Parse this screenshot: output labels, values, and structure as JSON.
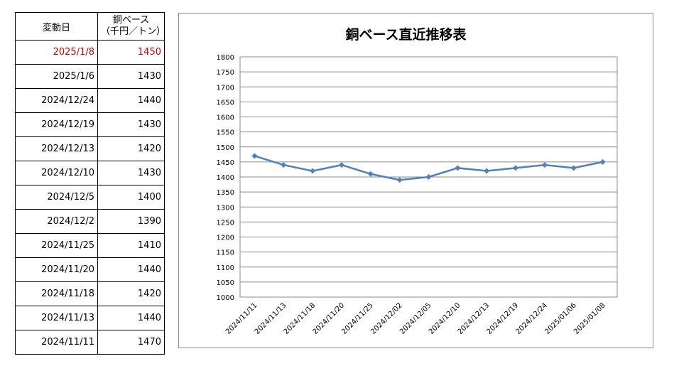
{
  "table": {
    "header": {
      "date": "変動日",
      "price_line1": "銅ベース",
      "price_line2": "（千円／トン）"
    },
    "rows": [
      {
        "date": "2025/1/8",
        "value": "1450",
        "highlight": true
      },
      {
        "date": "2025/1/6",
        "value": "1430"
      },
      {
        "date": "2024/12/24",
        "value": "1440"
      },
      {
        "date": "2024/12/19",
        "value": "1430"
      },
      {
        "date": "2024/12/13",
        "value": "1420"
      },
      {
        "date": "2024/12/10",
        "value": "1430"
      },
      {
        "date": "2024/12/5",
        "value": "1400"
      },
      {
        "date": "2024/12/2",
        "value": "1390"
      },
      {
        "date": "2024/11/25",
        "value": "1410"
      },
      {
        "date": "2024/11/20",
        "value": "1440"
      },
      {
        "date": "2024/11/18",
        "value": "1420"
      },
      {
        "date": "2024/11/13",
        "value": "1440"
      },
      {
        "date": "2024/11/11",
        "value": "1470"
      }
    ]
  },
  "colors": {
    "series": "#4f81bd",
    "highlight": "#cc0000",
    "grid": "#8c8c8c"
  },
  "chart_data": {
    "type": "line",
    "title": "銅ベース直近推移表",
    "categories": [
      "2024/11/11",
      "2024/11/13",
      "2024/11/18",
      "2024/11/20",
      "2024/11/25",
      "2024/12/02",
      "2024/12/05",
      "2024/12/10",
      "2024/12/13",
      "2024/12/19",
      "2024/12/24",
      "2025/01/06",
      "2025/01/08"
    ],
    "series": [
      {
        "values": [
          1470,
          1440,
          1420,
          1440,
          1410,
          1390,
          1400,
          1430,
          1420,
          1430,
          1440,
          1430,
          1450
        ]
      }
    ],
    "ylim": [
      1000,
      1800
    ],
    "ytick_step": 50,
    "grid": true,
    "legend": "none"
  }
}
